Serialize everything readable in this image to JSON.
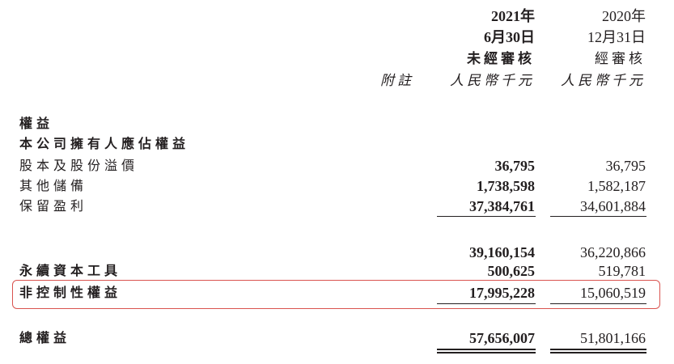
{
  "header": {
    "col1": {
      "year": "2021年",
      "date": "6月30日",
      "audit": "未經審核",
      "unit": "人民幣千元"
    },
    "col2": {
      "year": "2020年",
      "date": "12月31日",
      "audit": "經審核",
      "unit": "人民幣千元"
    },
    "note": "附註"
  },
  "rows": [
    {
      "label": "權益"
    },
    {
      "label": "本公司擁有人應佔權益"
    },
    {
      "label": "股本及股份溢價",
      "v2021": "36,795",
      "v2020": "36,795"
    },
    {
      "label": "其他儲備",
      "v2021": "1,738,598",
      "v2020": "1,582,187"
    },
    {
      "label": "保留盈利",
      "v2021": "37,384,761",
      "v2020": "34,601,884"
    },
    {
      "label": "",
      "v2021": "39,160,154",
      "v2020": "36,220,866"
    },
    {
      "label": "永續資本工具",
      "v2021": "500,625",
      "v2020": "519,781"
    },
    {
      "label": "非控制性權益",
      "v2021": "17,995,228",
      "v2020": "15,060,519"
    },
    {
      "label": "總權益",
      "v2021": "57,656,007",
      "v2020": "51,801,166"
    }
  ],
  "highlight_color": "#d9534f"
}
